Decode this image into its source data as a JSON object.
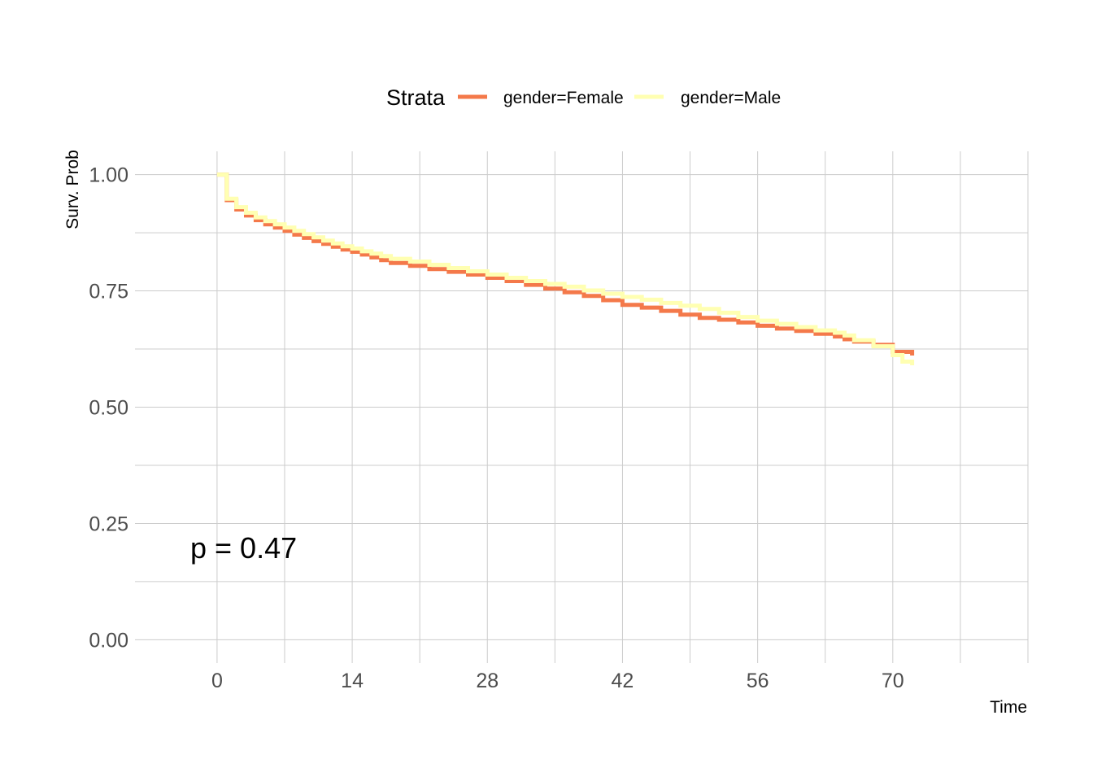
{
  "chart_data": {
    "type": "line",
    "subtype": "step",
    "xlabel": "Time",
    "ylabel": "Surv. Prob",
    "xlim": [
      -8.5,
      84
    ],
    "ylim": [
      -0.05,
      1.05
    ],
    "x_ticks": [
      0,
      14,
      28,
      42,
      56,
      70
    ],
    "x_tick_labels": [
      "0",
      "14",
      "28",
      "42",
      "56",
      "70"
    ],
    "x_minor_gridlines": [
      7,
      21,
      35,
      49,
      63,
      77,
      84
    ],
    "y_ticks": [
      0,
      0.25,
      0.5,
      0.75,
      1.0
    ],
    "y_tick_labels": [
      "0.00",
      "0.25",
      "0.50",
      "0.75",
      "1.00"
    ],
    "y_minor_gridlines": [
      0.125,
      0.375,
      0.625,
      0.875
    ],
    "grid": true,
    "legend": {
      "title": "Strata",
      "position": "top"
    },
    "annotation": "p = 0.47",
    "series": [
      {
        "name": "gender=Female",
        "color": "#F4794A",
        "x": [
          0,
          1,
          2,
          3,
          4,
          5,
          6,
          7,
          8,
          9,
          10,
          11,
          12,
          13,
          14,
          15,
          16,
          17,
          18,
          20,
          22,
          24,
          26,
          28,
          30,
          32,
          34,
          36,
          38,
          40,
          42,
          44,
          46,
          48,
          50,
          52,
          54,
          56,
          58,
          60,
          62,
          64,
          65,
          66,
          68,
          70,
          72
        ],
        "y": [
          1.0,
          0.945,
          0.925,
          0.912,
          0.902,
          0.893,
          0.886,
          0.879,
          0.871,
          0.864,
          0.857,
          0.851,
          0.845,
          0.839,
          0.834,
          0.828,
          0.822,
          0.816,
          0.81,
          0.804,
          0.797,
          0.791,
          0.785,
          0.778,
          0.771,
          0.763,
          0.755,
          0.747,
          0.739,
          0.73,
          0.72,
          0.714,
          0.707,
          0.699,
          0.692,
          0.688,
          0.682,
          0.675,
          0.669,
          0.664,
          0.658,
          0.652,
          0.646,
          0.641,
          0.634,
          0.619,
          0.611
        ]
      },
      {
        "name": "gender=Male",
        "color": "#FFFFB2",
        "x": [
          0,
          1,
          2,
          3,
          4,
          5,
          6,
          7,
          8,
          9,
          10,
          11,
          12,
          13,
          14,
          15,
          16,
          17,
          18,
          20,
          22,
          24,
          26,
          28,
          30,
          32,
          34,
          36,
          38,
          40,
          42,
          44,
          46,
          48,
          50,
          52,
          54,
          56,
          58,
          60,
          62,
          64,
          65,
          66,
          68,
          70,
          71,
          72
        ],
        "y": [
          1.0,
          0.948,
          0.93,
          0.918,
          0.908,
          0.9,
          0.893,
          0.886,
          0.879,
          0.872,
          0.865,
          0.858,
          0.852,
          0.846,
          0.841,
          0.835,
          0.83,
          0.825,
          0.819,
          0.813,
          0.806,
          0.799,
          0.792,
          0.785,
          0.778,
          0.771,
          0.765,
          0.759,
          0.751,
          0.744,
          0.737,
          0.731,
          0.724,
          0.718,
          0.711,
          0.703,
          0.694,
          0.686,
          0.679,
          0.672,
          0.665,
          0.66,
          0.654,
          0.644,
          0.631,
          0.612,
          0.598,
          0.59
        ]
      }
    ]
  }
}
